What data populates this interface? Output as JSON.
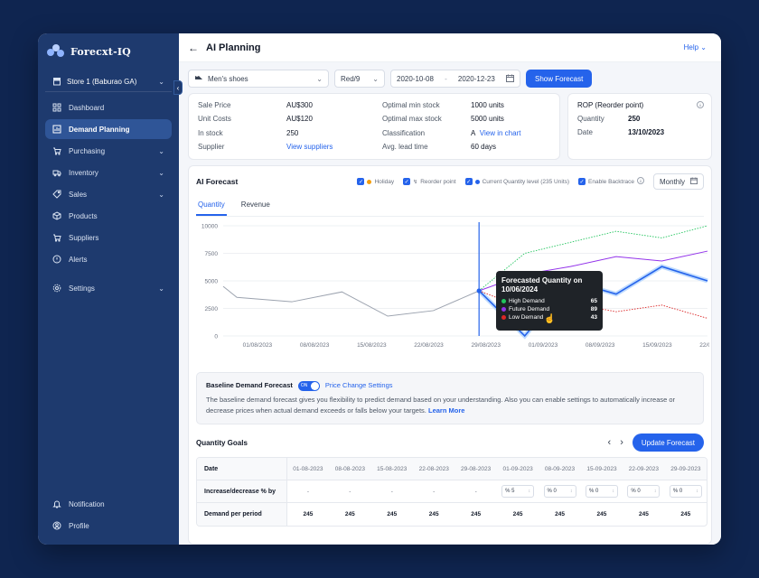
{
  "app": {
    "brand": "Forecxt-IQ"
  },
  "sidebar": {
    "store": "Store 1 (Baburao GA)",
    "items": [
      {
        "label": "Dashboard",
        "icon": "grid-icon"
      },
      {
        "label": "Demand Planning",
        "icon": "chart-box-icon"
      },
      {
        "label": "Purchasing",
        "icon": "cart-icon"
      },
      {
        "label": "Inventory",
        "icon": "truck-icon"
      },
      {
        "label": "Sales",
        "icon": "tag-icon"
      },
      {
        "label": "Products",
        "icon": "box-icon"
      },
      {
        "label": "Suppliers",
        "icon": "cart-icon"
      },
      {
        "label": "Alerts",
        "icon": "alert-icon"
      }
    ],
    "settings": "Settings",
    "notification": "Notification",
    "profile": "Profile"
  },
  "header": {
    "title": "AI Planning",
    "help": "Help"
  },
  "filters": {
    "product": "Men's shoes",
    "variant": "Red/9",
    "date_from": "2020-10-08",
    "date_sep": "-",
    "date_to": "2020-12-23",
    "show_forecast": "Show Forecast"
  },
  "product_info": {
    "sale_price_label": "Sale Price",
    "sale_price": "AU$300",
    "unit_costs_label": "Unit Costs",
    "unit_costs": "AU$120",
    "in_stock_label": "In stock",
    "in_stock": "250",
    "supplier_label": "Supplier",
    "supplier_link": "View suppliers",
    "opt_min_label": "Optimal min stock",
    "opt_min": "1000 units",
    "opt_max_label": "Optimal max stock",
    "opt_max": "5000 units",
    "class_label": "Classification",
    "class_value": "A",
    "class_link": "View in chart",
    "lead_label": "Avg. lead time",
    "lead_value": "60 days"
  },
  "rop": {
    "title": "ROP (Reorder point)",
    "quantity_label": "Quantity",
    "quantity": "250",
    "date_label": "Date",
    "date": "13/10/2023"
  },
  "forecast": {
    "title": "AI Forecast",
    "checks": {
      "holiday": "Holiday",
      "reorder": "Reorder point",
      "current_qty": "Current Quantity level (235 Units)",
      "backtrace": "Enable Backtrace"
    },
    "period": "Monthly",
    "tabs": [
      "Quantity",
      "Revenue"
    ],
    "tooltip": {
      "title": "Forecasted Quantity on 10/06/2024",
      "rows": [
        {
          "label": "High Demand",
          "value": "65"
        },
        {
          "label": "Future Demand",
          "value": "89"
        },
        {
          "label": "Low Demand",
          "value": "43"
        }
      ]
    }
  },
  "colors": {
    "primary": "#2563eb",
    "high": "#22c55e",
    "future": "#9333ea",
    "low": "#dc2626",
    "history": "#9ca3af"
  },
  "chart_data": {
    "type": "line",
    "title": "AI Forecast",
    "x": [
      "01/08/2023",
      "08/08/2023",
      "15/08/2023",
      "22/08/2023",
      "29/08/2023",
      "01/09/2023",
      "08/09/2023",
      "15/09/2023",
      "22/09/2023"
    ],
    "ylim": [
      0,
      10000
    ],
    "yticks": [
      0,
      2500,
      5000,
      7500,
      10000
    ],
    "xlabels": [
      "01/08/2023",
      "08/08/2023",
      "15/08/2023",
      "22/08/2023",
      "29/08/2023",
      "01/09/2023",
      "08/09/2023",
      "15/09/2023",
      "22/09/2023"
    ],
    "series": [
      {
        "name": "History",
        "points": [
          [
            0,
            4500
          ],
          [
            0.3,
            3500
          ],
          [
            1.5,
            3100
          ],
          [
            2.6,
            4000
          ],
          [
            3.6,
            1800
          ],
          [
            4.6,
            2300
          ],
          [
            5.6,
            4100
          ]
        ]
      },
      {
        "name": "Forecast",
        "points": [
          [
            5.6,
            4100
          ],
          [
            6.6,
            0
          ],
          [
            7.6,
            5000
          ],
          [
            8.6,
            3800
          ],
          [
            9.6,
            6300
          ],
          [
            10.6,
            5000
          ]
        ]
      },
      {
        "name": "High Demand",
        "points": [
          [
            5.6,
            4100
          ],
          [
            6.6,
            7500
          ],
          [
            7.6,
            8500
          ],
          [
            8.6,
            9500
          ],
          [
            9.6,
            8900
          ],
          [
            10.6,
            10000
          ]
        ]
      },
      {
        "name": "Future Demand",
        "points": [
          [
            5.6,
            4100
          ],
          [
            6.6,
            5600
          ],
          [
            7.6,
            6300
          ],
          [
            8.6,
            7200
          ],
          [
            9.6,
            6800
          ],
          [
            10.6,
            7700
          ]
        ]
      },
      {
        "name": "Low Demand",
        "points": [
          [
            5.6,
            4100
          ],
          [
            6.6,
            2500
          ],
          [
            7.6,
            3000
          ],
          [
            8.6,
            2200
          ],
          [
            9.6,
            2800
          ],
          [
            10.6,
            1600
          ]
        ]
      }
    ],
    "forecast_start_label": "29/08/2023"
  },
  "baseline": {
    "title": "Baseline Demand Forecast",
    "toggle": "ON",
    "price_link": "Price Change Settings",
    "text": "The baseline demand forecast gives you flexibility to predict demand based on your understanding. Also you can enable settings to automatically increase or decrease prices when actual demand exceeds or falls below your targets.",
    "learn_more": "Learn More"
  },
  "goals": {
    "title": "Quantity Goals",
    "update": "Update Forecast",
    "row_date": "Date",
    "row_pct": "Increase/decrease % by",
    "row_demand": "Demand per period",
    "dates": [
      "01-08-2023",
      "08-08-2023",
      "15-08-2023",
      "22-08-2023",
      "29-08-2023",
      "01-09-2023",
      "08-09-2023",
      "15-09-2023",
      "22-09-2023",
      "29-09-2023"
    ],
    "pct": [
      "-",
      "-",
      "-",
      "-",
      "-",
      "5",
      "0",
      "0",
      "0",
      "0"
    ],
    "demand": [
      "245",
      "245",
      "245",
      "245",
      "245",
      "245",
      "245",
      "245",
      "245",
      "245"
    ]
  }
}
